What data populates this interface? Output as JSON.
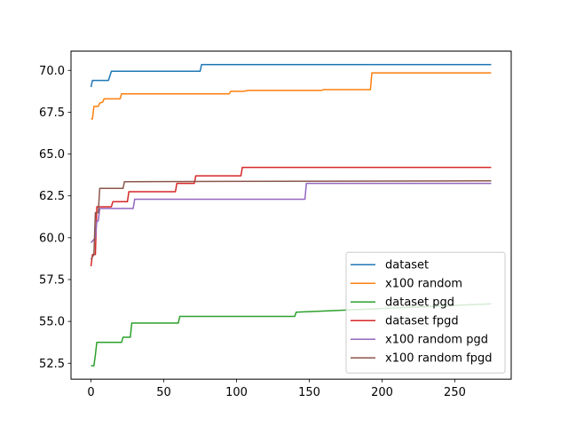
{
  "chart_data": {
    "type": "line",
    "title": "",
    "xlabel": "",
    "ylabel": "",
    "xlim": [
      -13.75,
      288.75
    ],
    "ylim": [
      51.55,
      71.15
    ],
    "xticks": [
      0,
      50,
      100,
      150,
      200,
      250
    ],
    "xtick_labels": [
      "0",
      "50",
      "100",
      "150",
      "200",
      "250"
    ],
    "yticks": [
      52.5,
      55.0,
      57.5,
      60.0,
      62.5,
      65.0,
      67.5,
      70.0
    ],
    "ytick_labels": [
      "52.5",
      "55.0",
      "57.5",
      "60.0",
      "62.5",
      "65.0",
      "67.5",
      "70.0"
    ],
    "grid": false,
    "legend_position": "lower-right",
    "series": [
      {
        "name": "dataset",
        "color": "#1f77b4",
        "points": [
          [
            0,
            69.0
          ],
          [
            1,
            69.4
          ],
          [
            12,
            69.4
          ],
          [
            14,
            69.95
          ],
          [
            75,
            69.95
          ],
          [
            76,
            70.35
          ],
          [
            275,
            70.35
          ]
        ]
      },
      {
        "name": "x100 random",
        "color": "#ff7f0e",
        "points": [
          [
            0,
            67.1
          ],
          [
            1,
            67.1
          ],
          [
            2,
            67.85
          ],
          [
            5,
            67.85
          ],
          [
            6,
            68.05
          ],
          [
            8,
            68.1
          ],
          [
            9,
            68.3
          ],
          [
            20,
            68.3
          ],
          [
            21,
            68.6
          ],
          [
            95,
            68.6
          ],
          [
            96,
            68.75
          ],
          [
            105,
            68.75
          ],
          [
            108,
            68.8
          ],
          [
            158,
            68.8
          ],
          [
            160,
            68.85
          ],
          [
            192,
            68.85
          ],
          [
            193,
            69.85
          ],
          [
            275,
            69.85
          ]
        ]
      },
      {
        "name": "dataset pgd",
        "color": "#2ca02c",
        "points": [
          [
            0,
            52.35
          ],
          [
            2,
            52.35
          ],
          [
            3,
            53.0
          ],
          [
            4,
            53.75
          ],
          [
            21,
            53.75
          ],
          [
            22,
            54.05
          ],
          [
            27,
            54.05
          ],
          [
            28,
            54.9
          ],
          [
            60,
            54.9
          ],
          [
            61,
            55.3
          ],
          [
            140,
            55.3
          ],
          [
            141,
            55.55
          ],
          [
            275,
            56.05
          ]
        ]
      },
      {
        "name": "dataset fpgd",
        "color": "#d62728",
        "points": [
          [
            0,
            58.3
          ],
          [
            1,
            59.0
          ],
          [
            3,
            59.0
          ],
          [
            4,
            61.85
          ],
          [
            14,
            61.85
          ],
          [
            15,
            62.15
          ],
          [
            25,
            62.15
          ],
          [
            26,
            62.75
          ],
          [
            58,
            62.75
          ],
          [
            59,
            63.25
          ],
          [
            71,
            63.25
          ],
          [
            72,
            63.7
          ],
          [
            103,
            63.7
          ],
          [
            104,
            64.2
          ],
          [
            275,
            64.2
          ]
        ]
      },
      {
        "name": "x100 random pgd",
        "color": "#9467bd",
        "points": [
          [
            0,
            59.7
          ],
          [
            3,
            60.0
          ],
          [
            4,
            61.0
          ],
          [
            5,
            61.0
          ],
          [
            6,
            61.75
          ],
          [
            29,
            61.75
          ],
          [
            30,
            62.3
          ],
          [
            147,
            62.3
          ],
          [
            148,
            63.25
          ],
          [
            275,
            63.25
          ]
        ]
      },
      {
        "name": "x100 random fpgd",
        "color": "#8c564b",
        "points": [
          [
            0,
            58.7
          ],
          [
            2,
            59.0
          ],
          [
            3,
            61.5
          ],
          [
            5,
            61.5
          ],
          [
            6,
            62.95
          ],
          [
            22,
            62.95
          ],
          [
            23,
            63.35
          ],
          [
            275,
            63.4
          ]
        ]
      }
    ]
  }
}
